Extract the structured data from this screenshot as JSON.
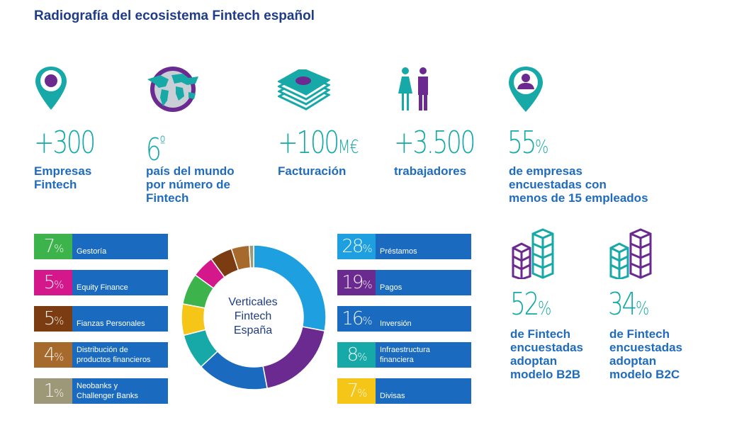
{
  "title": "Radiografía del ecosistema Fintech español",
  "stats": [
    {
      "value": "+300",
      "unit": "",
      "label": "Empresas\nFintech",
      "icon": "location-pin-icon"
    },
    {
      "value": "6",
      "unit": "º",
      "label": "país del mundo\npor número de\nFintech",
      "icon": "globe-icon"
    },
    {
      "value": "+100",
      "unit": "M€",
      "label": "Facturación",
      "icon": "money-stack-icon"
    },
    {
      "value": "+3.500",
      "unit": "",
      "label": "trabajadores",
      "icon": "workers-icon"
    },
    {
      "value": "55",
      "unit": "%",
      "label": "de empresas\nencuestadas con\nmenos de 15 empleados",
      "icon": "person-pin-icon"
    }
  ],
  "models": [
    {
      "value": "52",
      "unit": "%",
      "label": "de Fintech\nencuestadas\nadoptan\nmodelo B2B",
      "icon": "buildings-b2b-icon"
    },
    {
      "value": "34",
      "unit": "%",
      "label": "de Fintech\nencuestadas\nadoptan\nmodelo B2C",
      "icon": "buildings-b2c-icon"
    }
  ],
  "colors": {
    "teal": "#17a9a7",
    "navy": "#1f3c88",
    "blue": "#1f6bbf",
    "bar": "#1a6bc0",
    "purple": "#6b2a8f"
  },
  "chart_data": {
    "type": "pie",
    "center_label": "Verticales\nFintech\nEspaña",
    "slices": [
      {
        "name": "Préstamos",
        "value": 28,
        "color": "#1ea0e0"
      },
      {
        "name": "Pagos",
        "value": 19,
        "color": "#6b2a8f"
      },
      {
        "name": "Inversión",
        "value": 16,
        "color": "#1a6bc0"
      },
      {
        "name": "Infraestructura financiera",
        "value": 8,
        "color": "#17a9a7"
      },
      {
        "name": "Divisas",
        "value": 7,
        "color": "#f5c518"
      },
      {
        "name": "Gestoría",
        "value": 7,
        "color": "#3cb44b"
      },
      {
        "name": "Equity Finance",
        "value": 5,
        "color": "#d4178a"
      },
      {
        "name": "Fianzas Personales",
        "value": 5,
        "color": "#7a3c10"
      },
      {
        "name": "Distribución de productos financieros",
        "value": 4,
        "color": "#a66a2c"
      },
      {
        "name": "Neobanks y Challenger Banks",
        "value": 1,
        "color": "#9c9878"
      }
    ],
    "left_bars": [
      {
        "pct": "7",
        "label": "Gestoría",
        "color": "#3cb44b"
      },
      {
        "pct": "5",
        "label": "Equity Finance",
        "color": "#d4178a"
      },
      {
        "pct": "5",
        "label": "Fianzas Personales",
        "color": "#7a3c10"
      },
      {
        "pct": "4",
        "label": "Distribución de\nproductos financieros",
        "color": "#a66a2c"
      },
      {
        "pct": "1",
        "label": "Neobanks y\nChallenger Banks",
        "color": "#9c9878"
      }
    ],
    "right_bars": [
      {
        "pct": "28",
        "label": "Préstamos",
        "color": "#1ea0e0"
      },
      {
        "pct": "19",
        "label": "Pagos",
        "color": "#6b2a8f"
      },
      {
        "pct": "16",
        "label": "Inversión",
        "color": "#1a6bc0"
      },
      {
        "pct": "8",
        "label": "Infraestructura\nfinanciera",
        "color": "#17a9a7"
      },
      {
        "pct": "7",
        "label": "Divisas",
        "color": "#f5c518"
      }
    ],
    "pct_symbol": "%"
  }
}
